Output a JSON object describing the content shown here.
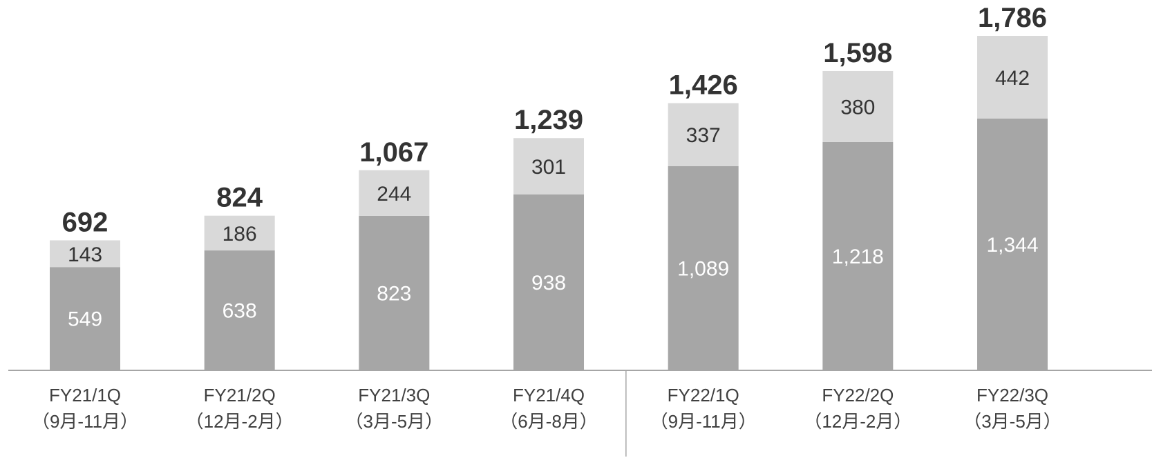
{
  "chart_data": {
    "type": "bar",
    "stacked": true,
    "categories": [
      "FY21/1Q",
      "FY21/2Q",
      "FY21/3Q",
      "FY21/4Q",
      "FY22/1Q",
      "FY22/2Q",
      "FY22/3Q"
    ],
    "category_sublabels": [
      "（9月-11月）",
      "（12月-2月）",
      "（3月-5月）",
      "（6月-8月）",
      "（9月-11月）",
      "（12月-2月）",
      "（3月-5月）"
    ],
    "series": [
      {
        "values": [
          549,
          638,
          823,
          938,
          1089,
          1218,
          1344
        ],
        "color": "#a6a6a6"
      },
      {
        "values": [
          143,
          186,
          244,
          301,
          337,
          380,
          442
        ],
        "color": "#d9d9d9"
      }
    ],
    "totals": [
      692,
      824,
      1067,
      1239,
      1426,
      1598,
      1786
    ],
    "value_labels": {
      "bottom": [
        "549",
        "638",
        "823",
        "938",
        "1,089",
        "1,218",
        "1,344"
      ],
      "top": [
        "143",
        "186",
        "244",
        "301",
        "337",
        "380",
        "442"
      ],
      "totals": [
        "692",
        "824",
        "1,067",
        "1,239",
        "1,426",
        "1,598",
        "1,786"
      ]
    },
    "ylim": [
      0,
      1786
    ],
    "divider_after_category": 3,
    "grid": false,
    "title": "",
    "xlabel": "",
    "ylabel": ""
  }
}
